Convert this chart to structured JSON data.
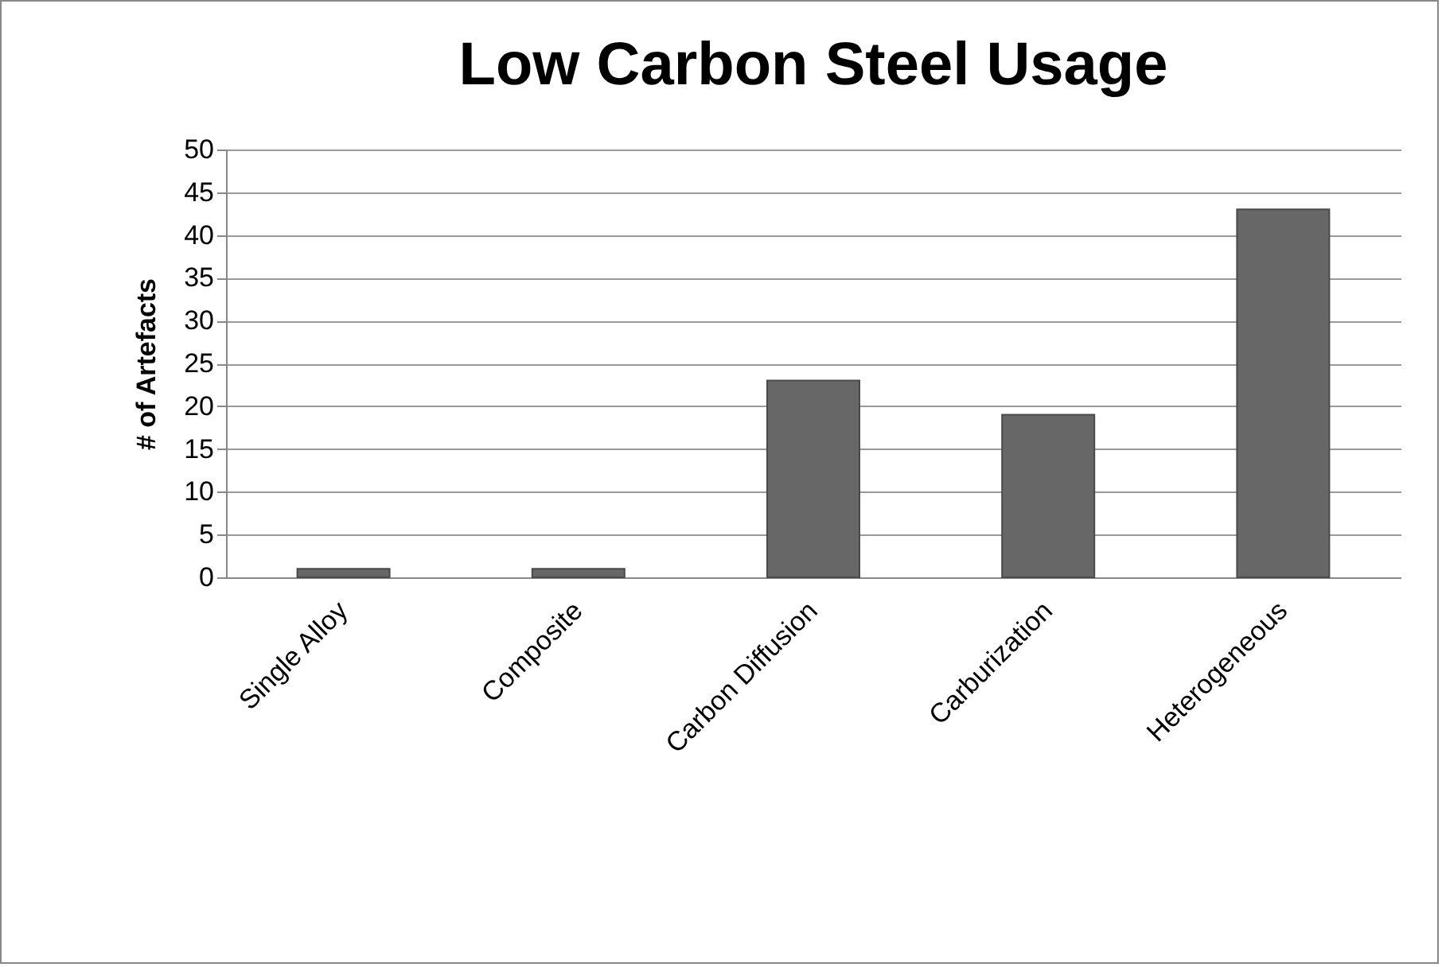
{
  "chart_data": {
    "type": "bar",
    "title": "Low Carbon Steel Usage",
    "ylabel": "# of Artefacts",
    "categories": [
      "Single Alloy",
      "Composite",
      "Carbon Diffusion",
      "Carburization",
      "Heterogeneous"
    ],
    "values": [
      1,
      1,
      23,
      19,
      43
    ],
    "color": "#676767",
    "ylim": [
      0,
      50
    ],
    "yticks": [
      0,
      5,
      10,
      15,
      20,
      25,
      30,
      35,
      40,
      45,
      50
    ],
    "grid": "y"
  }
}
